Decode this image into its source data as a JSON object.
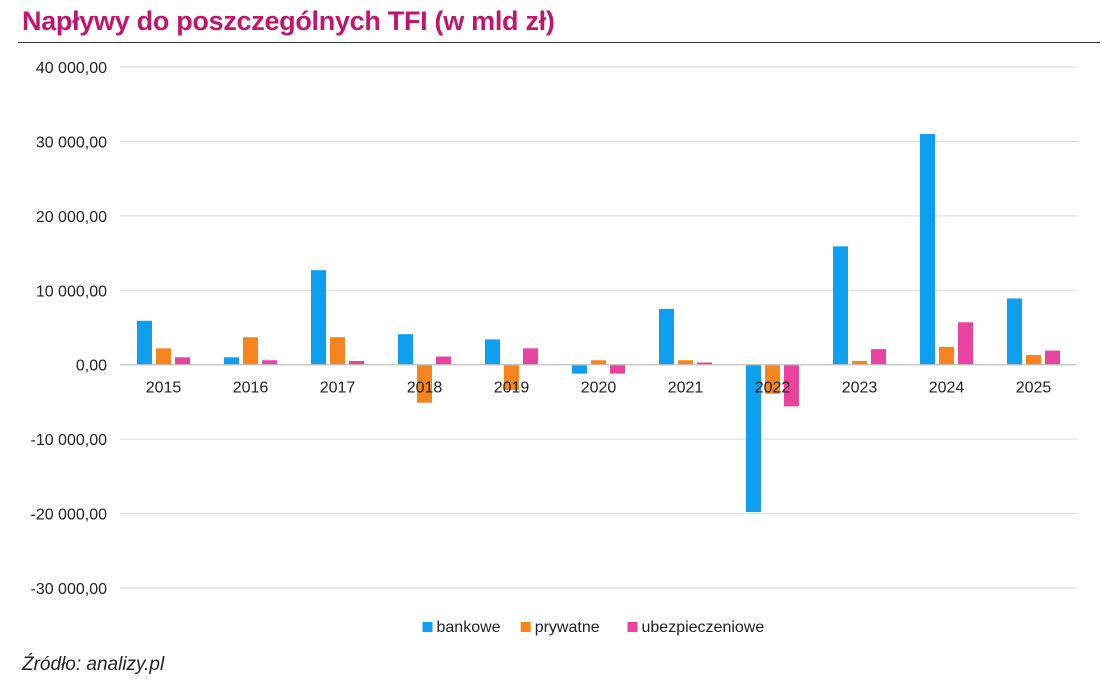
{
  "title": "Napływy do poszczególnych TFI (w mld zł)",
  "source": "Źródło: analizy.pl",
  "chart_data": {
    "type": "bar",
    "title": "Napływy do poszczególnych TFI (w mld zł)",
    "xlabel": "",
    "ylabel": "",
    "categories": [
      "2015",
      "2016",
      "2017",
      "2018",
      "2019",
      "2020",
      "2021",
      "2022",
      "2023",
      "2024",
      "2025"
    ],
    "series": [
      {
        "name": "bankowe",
        "color": "#0ea0ef",
        "values": [
          5900,
          1000,
          12700,
          4100,
          3400,
          -1200,
          7500,
          -19800,
          15900,
          31000,
          8900
        ]
      },
      {
        "name": "prywatne",
        "color": "#f7851f",
        "values": [
          2200,
          3700,
          3700,
          -5100,
          -3400,
          600,
          600,
          -3900,
          500,
          2400,
          1300
        ]
      },
      {
        "name": "ubezpieczeniowe",
        "color": "#e8449f",
        "values": [
          1000,
          600,
          500,
          1100,
          2200,
          -1200,
          300,
          -5600,
          2100,
          5700,
          1900
        ]
      }
    ],
    "ylim": [
      -30000,
      40000
    ],
    "yticks": [
      -30000,
      -20000,
      -10000,
      0,
      10000,
      20000,
      30000,
      40000
    ],
    "ytick_labels": [
      "-30 000,00",
      "-20 000,00",
      "-10 000,00",
      "0,00",
      "10 000,00",
      "20 000,00",
      "30 000,00",
      "40 000,00"
    ],
    "grid": true,
    "legend_position": "bottom-center"
  }
}
